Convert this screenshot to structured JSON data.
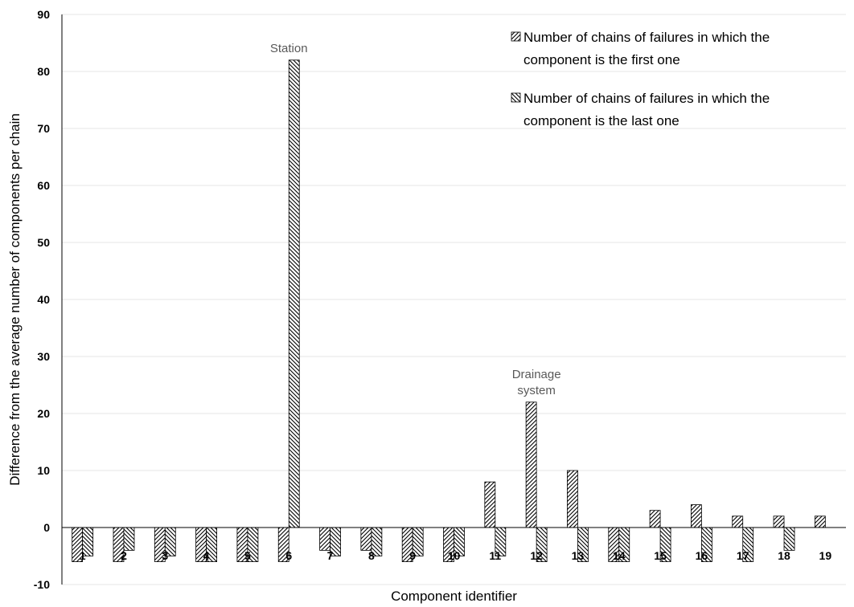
{
  "chart_data": {
    "type": "bar",
    "categories": [
      "1",
      "2",
      "3",
      "4",
      "5",
      "6",
      "7",
      "8",
      "9",
      "10",
      "11",
      "12",
      "13",
      "14",
      "15",
      "16",
      "17",
      "18",
      "19"
    ],
    "series": [
      {
        "name": "Number of chains of failures in which the component is the first one",
        "name_lines": [
          "Number of chains of failures in which the",
          "component is the first one"
        ],
        "pattern": "forward-diagonal",
        "values": [
          -6,
          -6,
          -6,
          -6,
          -6,
          -6,
          -4,
          -4,
          -6,
          -6,
          8,
          22,
          10,
          -6,
          3,
          4,
          2,
          2,
          2
        ]
      },
      {
        "name": "Number of chains of failures in which the component is the last one",
        "name_lines": [
          "Number of chains of failures in which the",
          "component is the last one"
        ],
        "pattern": "backward-diagonal",
        "values": [
          -5,
          -4,
          -5,
          -6,
          -6,
          82,
          -5,
          -5,
          -5,
          -5,
          -5,
          -6,
          -6,
          -6,
          -6,
          -6,
          -6,
          -4,
          null
        ]
      }
    ],
    "xlabel": "Component  identifier",
    "ylabel": "Difference from the average number of components per chain",
    "ylim": [
      -10,
      90
    ],
    "yticks": [
      -10,
      0,
      10,
      20,
      30,
      40,
      50,
      60,
      70,
      80,
      90
    ],
    "grid": "horizontal",
    "legend_position": "top-right",
    "annotations": [
      {
        "text_lines": [
          "Station"
        ],
        "category": "6"
      },
      {
        "text_lines": [
          "Drainage",
          "system"
        ],
        "category": "12"
      }
    ],
    "colors": {
      "bar_stroke": "#000000",
      "hatch": "#000000",
      "grid": "#e6e6e6",
      "axis": "#000000",
      "annotation": "#595959"
    }
  }
}
